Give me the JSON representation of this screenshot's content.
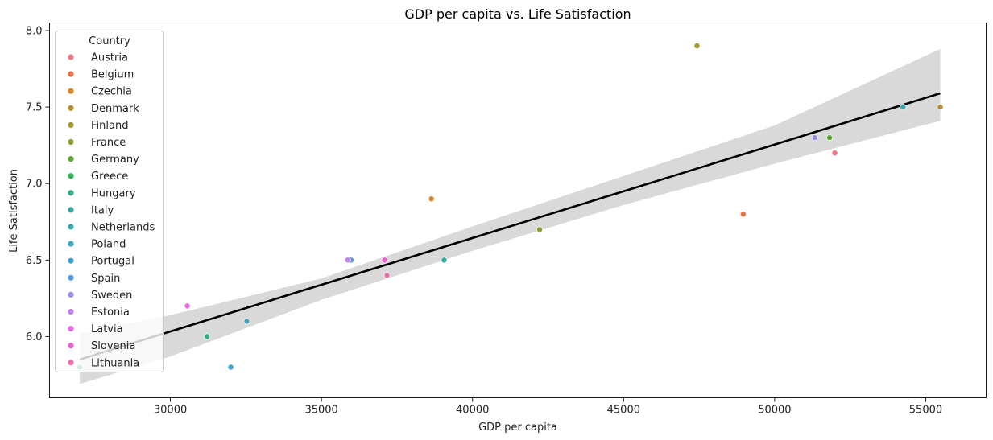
{
  "chart_data": {
    "type": "scatter",
    "title": "GDP per capita vs. Life Satisfaction",
    "xlabel": "GDP per capita",
    "ylabel": "Life Satisfaction",
    "xlim": [
      26000,
      57000
    ],
    "ylim": [
      5.6,
      8.05
    ],
    "xticks": [
      30000,
      35000,
      40000,
      45000,
      50000,
      55000
    ],
    "yticks": [
      6.0,
      6.5,
      7.0,
      7.5,
      8.0
    ],
    "grid": false,
    "legend": {
      "title": "Country",
      "placement": "top-left"
    },
    "series": [
      {
        "name": "Austria",
        "color": "#f2737f",
        "points": [
          [
            51990,
            7.2
          ]
        ]
      },
      {
        "name": "Belgium",
        "color": "#ee7146",
        "points": [
          [
            48960,
            6.8
          ]
        ]
      },
      {
        "name": "Czechia",
        "color": "#d8852e",
        "points": [
          [
            38640,
            6.9
          ]
        ]
      },
      {
        "name": "Denmark",
        "color": "#b98c2c",
        "points": [
          [
            55480,
            7.5
          ]
        ]
      },
      {
        "name": "Finland",
        "color": "#a19a2c",
        "points": [
          [
            47430,
            7.9
          ]
        ]
      },
      {
        "name": "France",
        "color": "#8ea02e",
        "points": [
          [
            42220,
            6.7
          ]
        ]
      },
      {
        "name": "Germany",
        "color": "#5ba531",
        "points": [
          [
            51820,
            7.3
          ]
        ]
      },
      {
        "name": "Greece",
        "color": "#32b058",
        "points": [
          [
            27000,
            5.8
          ]
        ]
      },
      {
        "name": "Hungary",
        "color": "#34ab86",
        "points": [
          [
            31220,
            6.0
          ]
        ]
      },
      {
        "name": "Italy",
        "color": "#35a89e",
        "points": [
          [
            39060,
            6.5
          ]
        ]
      },
      {
        "name": "Netherlands",
        "color": "#37a6ab",
        "points": [
          [
            54250,
            7.5
          ]
        ]
      },
      {
        "name": "Poland",
        "color": "#3ba8bf",
        "points": [
          [
            32530,
            6.1
          ]
        ]
      },
      {
        "name": "Portugal",
        "color": "#3aa3d2",
        "points": [
          [
            32000,
            5.8
          ]
        ]
      },
      {
        "name": "Spain",
        "color": "#5896ea",
        "points": [
          [
            35980,
            6.5
          ]
        ]
      },
      {
        "name": "Sweden",
        "color": "#9c8ee8",
        "points": [
          [
            51330,
            7.3
          ]
        ]
      },
      {
        "name": "Estonia",
        "color": "#c17fec",
        "points": [
          [
            35870,
            6.5
          ]
        ]
      },
      {
        "name": "Latvia",
        "color": "#e968e8",
        "points": [
          [
            30560,
            6.2
          ]
        ]
      },
      {
        "name": "Slovenia",
        "color": "#ed5fd0",
        "points": [
          [
            37090,
            6.5
          ]
        ]
      },
      {
        "name": "Lithuania",
        "color": "#ee6eac",
        "points": [
          [
            37170,
            6.4
          ]
        ]
      }
    ],
    "regression": {
      "color": "#000000",
      "ci_color": "#d9d9d9",
      "line": [
        [
          27000,
          5.85
        ],
        [
          55480,
          7.59
        ]
      ],
      "ci_upper": [
        [
          27000,
          6.02
        ],
        [
          30000,
          6.14
        ],
        [
          35000,
          6.38
        ],
        [
          40000,
          6.72
        ],
        [
          45000,
          7.05
        ],
        [
          50000,
          7.38
        ],
        [
          55480,
          7.88
        ]
      ],
      "ci_lower": [
        [
          27000,
          5.69
        ],
        [
          30000,
          5.87
        ],
        [
          35000,
          6.24
        ],
        [
          40000,
          6.56
        ],
        [
          45000,
          6.86
        ],
        [
          50000,
          7.13
        ],
        [
          55480,
          7.41
        ]
      ]
    }
  }
}
